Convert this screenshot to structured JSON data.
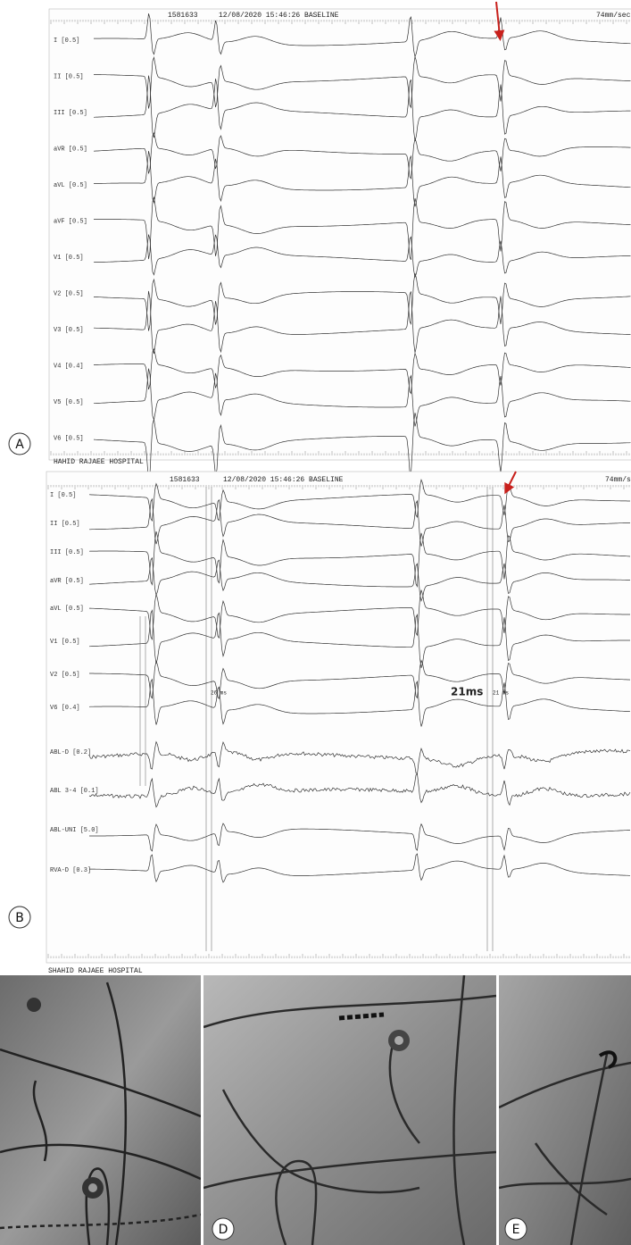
{
  "panel_a": {
    "label": "A",
    "header": {
      "id": "1581633",
      "timestamp": "12/08/2020 15:46:26 BASELINE",
      "speed": "74mm/sec"
    },
    "leads": [
      "I [0.5]",
      "II [0.5]",
      "III [0.5]",
      "aVR [0.5]",
      "aVL [0.5]",
      "aVF [0.5]",
      "V1 [0.5]",
      "V2 [0.5]",
      "V3 [0.5]",
      "V4 [0.4]",
      "V5 [0.5]",
      "V6 [0.5]"
    ],
    "footer": "HAHID RAJAEE HOSPITAL"
  },
  "panel_b": {
    "label": "B",
    "header": {
      "id": "1581633",
      "timestamp": "12/08/2020 15:46:26 BASELINE",
      "speed": "74mm/s"
    },
    "leads": [
      "I [0.5]",
      "II [0.5]",
      "III [0.5]",
      "aVR [0.5]",
      "aVL [0.5]",
      "V1 [0.5]",
      "V2 [0.5]",
      "V6 [0.4]",
      "ABL-D [0.2]",
      "ABL 3-4 [0.1]",
      "ABL-UNI [5.0]",
      "RVA-D [0.3]"
    ],
    "annotations": {
      "left_interval": "26 ms",
      "main_interval": "21ms",
      "right_interval": "21 ms"
    },
    "footer": "SHAHID RAJAEE HOSPITAL"
  },
  "fluoroscopy": {
    "labels": [
      "D",
      "E"
    ]
  }
}
